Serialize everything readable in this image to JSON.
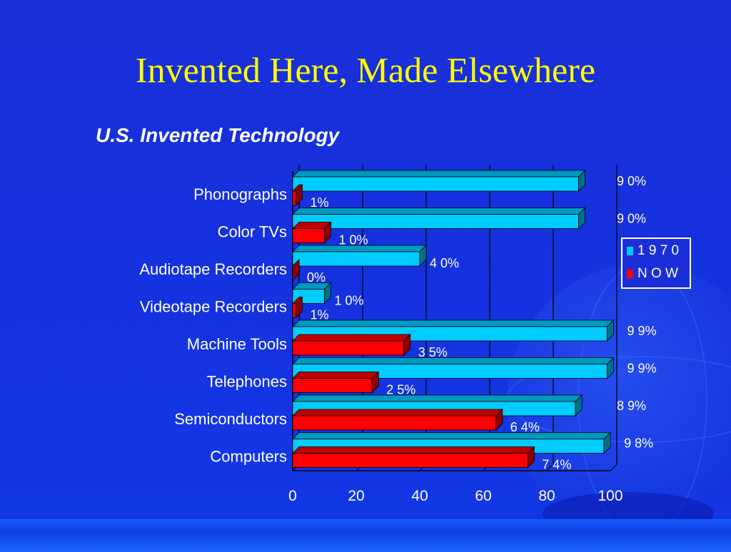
{
  "slide": {
    "title": "Invented Here, Made Elsewhere",
    "subtitle": "U.S. Invented Technology"
  },
  "colors": {
    "background": "#1a2fd8",
    "title": "#ffff00",
    "series_1970": "#00ccff",
    "series_now": "#ff0000"
  },
  "chart_data": {
    "type": "bar",
    "orientation": "horizontal",
    "style": "3d",
    "categories": [
      "Phonographs",
      "Color TVs",
      "Audiotape Recorders",
      "Videotape Recorders",
      "Machine Tools",
      "Telephones",
      "Semiconductors",
      "Computers"
    ],
    "series": [
      {
        "name": "1 9 7 0",
        "values": [
          90,
          90,
          40,
          10,
          99,
          99,
          89,
          98
        ],
        "labels": [
          "9 0%",
          "9 0%",
          "4 0%",
          "1 0%",
          "9 9%",
          "9 9%",
          "8 9%",
          "9 8%"
        ]
      },
      {
        "name": "N O W",
        "values": [
          1,
          10,
          0,
          1,
          35,
          25,
          64,
          74
        ],
        "labels": [
          "1%",
          "1 0%",
          "0%",
          "1%",
          "3 5%",
          "2 5%",
          "6 4%",
          "7 4%"
        ]
      }
    ],
    "xlim": [
      0,
      100
    ],
    "xticks": [
      "0",
      "20",
      "40",
      "60",
      "80",
      "100"
    ],
    "grid": true,
    "legend": {
      "position": "right",
      "entries": [
        "1 9 7 0",
        "N O W"
      ]
    }
  }
}
